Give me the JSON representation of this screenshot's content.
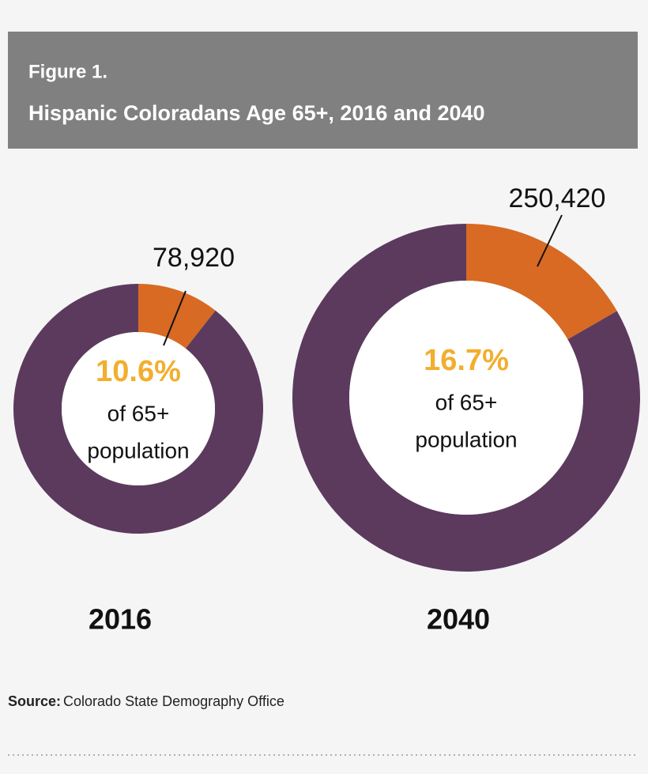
{
  "title": "Figure 1.",
  "subtitle": "Hispanic Coloradans Age 65+, 2016 and 2040",
  "source_label": "Source:",
  "source": "Colorado State Demography Office",
  "chart_data": [
    {
      "type": "donut",
      "title": "2016",
      "values": [
        10.6,
        89.4
      ],
      "value_labels": [
        "10.6%",
        null
      ],
      "colors": [
        "#d86a24",
        "#5c3a5e"
      ],
      "label_color": "#f2ae2e",
      "callout": "78,920",
      "center_text": [
        "of 65+",
        "population"
      ]
    },
    {
      "type": "donut",
      "title": "2040",
      "values": [
        16.7,
        83.3
      ],
      "value_labels": [
        "16.7%",
        null
      ],
      "colors": [
        "#d86a24",
        "#5c3a5e"
      ],
      "label_color": "#f2ae2e",
      "callout": "250,420",
      "center_text": [
        "of 65+",
        "population"
      ]
    }
  ]
}
